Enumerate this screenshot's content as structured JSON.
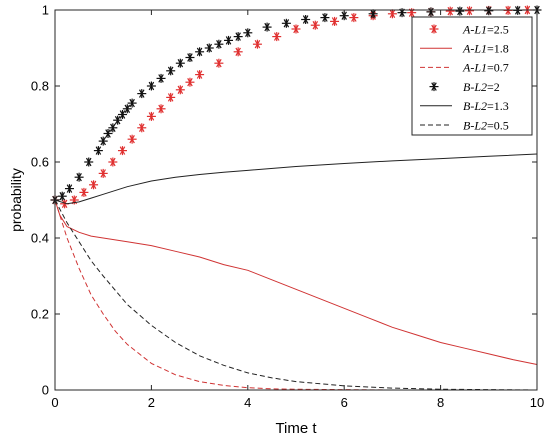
{
  "chart_data": {
    "type": "line",
    "xlabel": "Time t",
    "ylabel": "probability",
    "xlim": [
      0,
      10
    ],
    "ylim": [
      0,
      1
    ],
    "xticks": [
      "0",
      "2",
      "4",
      "6",
      "8",
      "10"
    ],
    "yticks": [
      "0",
      "0.2",
      "0.4",
      "0.6",
      "0.8",
      "1"
    ],
    "grid": false,
    "legend_position": "top-right",
    "series": [
      {
        "name": "A-L1=2.5",
        "legend_prefix": "A-L1",
        "legend_value": "=2.5",
        "style": "markers",
        "marker": "asterisk",
        "color": "#e03030",
        "x": [
          0,
          0.2,
          0.4,
          0.6,
          0.8,
          1.0,
          1.2,
          1.4,
          1.6,
          1.8,
          2.0,
          2.2,
          2.4,
          2.6,
          2.8,
          3.0,
          3.4,
          3.8,
          4.2,
          4.6,
          5.0,
          5.4,
          5.8,
          6.2,
          6.6,
          7.0,
          7.4,
          7.8,
          8.2,
          8.6,
          9.0,
          9.4,
          9.8
        ],
        "y": [
          0.5,
          0.49,
          0.5,
          0.52,
          0.54,
          0.57,
          0.6,
          0.63,
          0.66,
          0.69,
          0.72,
          0.74,
          0.77,
          0.79,
          0.81,
          0.83,
          0.86,
          0.89,
          0.91,
          0.93,
          0.95,
          0.96,
          0.97,
          0.98,
          0.985,
          0.99,
          0.993,
          0.995,
          0.997,
          0.998,
          0.999,
          0.999,
          1.0
        ]
      },
      {
        "name": "A-L1=1.8",
        "legend_prefix": "A-L1",
        "legend_value": "=1.8",
        "style": "solid",
        "color": "#d03434",
        "x": [
          0,
          0.1,
          0.25,
          0.5,
          0.75,
          1.0,
          1.5,
          2.0,
          2.5,
          3.0,
          3.5,
          4.0,
          4.5,
          5.0,
          5.5,
          6.0,
          6.5,
          7.0,
          7.5,
          8.0,
          8.5,
          9.0,
          9.5,
          10.0
        ],
        "y": [
          0.5,
          0.46,
          0.43,
          0.415,
          0.405,
          0.4,
          0.39,
          0.38,
          0.365,
          0.35,
          0.33,
          0.315,
          0.29,
          0.265,
          0.24,
          0.215,
          0.19,
          0.165,
          0.145,
          0.125,
          0.11,
          0.095,
          0.08,
          0.067
        ]
      },
      {
        "name": "A-L1=0.7",
        "legend_prefix": "A-L1",
        "legend_value": "=0.7",
        "style": "dashed",
        "color": "#d03434",
        "x": [
          0,
          0.25,
          0.5,
          0.75,
          1.0,
          1.25,
          1.5,
          1.75,
          2.0,
          2.5,
          3.0,
          3.5,
          4.0,
          4.5,
          5.0,
          6.0,
          7.0,
          8.0,
          9.0,
          10.0
        ],
        "y": [
          0.5,
          0.4,
          0.32,
          0.25,
          0.2,
          0.155,
          0.12,
          0.095,
          0.07,
          0.04,
          0.022,
          0.012,
          0.006,
          0.003,
          0.002,
          0.001,
          0.0,
          0.0,
          0.0,
          0.0
        ]
      },
      {
        "name": "B-L2=2",
        "legend_prefix": "B-L2",
        "legend_value": "=2",
        "style": "markers",
        "marker": "asterisk",
        "color": "#111111",
        "x": [
          0,
          0.15,
          0.3,
          0.5,
          0.7,
          0.9,
          1.0,
          1.1,
          1.2,
          1.3,
          1.4,
          1.5,
          1.6,
          1.8,
          2.0,
          2.2,
          2.4,
          2.6,
          2.8,
          3.0,
          3.2,
          3.4,
          3.6,
          3.8,
          4.0,
          4.4,
          4.8,
          5.2,
          5.6,
          6.0,
          6.6,
          7.2,
          7.8,
          8.4,
          9.0,
          9.6,
          10.0
        ],
        "y": [
          0.5,
          0.51,
          0.53,
          0.56,
          0.6,
          0.63,
          0.655,
          0.675,
          0.69,
          0.71,
          0.725,
          0.74,
          0.755,
          0.78,
          0.8,
          0.82,
          0.84,
          0.86,
          0.875,
          0.89,
          0.9,
          0.91,
          0.92,
          0.93,
          0.94,
          0.955,
          0.965,
          0.975,
          0.98,
          0.985,
          0.99,
          0.993,
          0.995,
          0.997,
          0.998,
          0.999,
          1.0
        ]
      },
      {
        "name": "B-L2=1.3",
        "legend_prefix": "B-L2",
        "legend_value": "=1.3",
        "style": "solid",
        "color": "#222222",
        "x": [
          0,
          0.25,
          0.5,
          0.75,
          1.0,
          1.5,
          2.0,
          2.5,
          3.0,
          3.5,
          4.0,
          5.0,
          6.0,
          7.0,
          8.0,
          9.0,
          10.0
        ],
        "y": [
          0.5,
          0.49,
          0.495,
          0.505,
          0.515,
          0.535,
          0.55,
          0.56,
          0.567,
          0.573,
          0.578,
          0.588,
          0.596,
          0.603,
          0.609,
          0.615,
          0.621
        ]
      },
      {
        "name": "B-L2=0.5",
        "legend_prefix": "B-L2",
        "legend_value": "=0.5",
        "style": "dashed",
        "color": "#222222",
        "x": [
          0,
          0.25,
          0.5,
          0.75,
          1.0,
          1.5,
          2.0,
          2.5,
          3.0,
          3.5,
          4.0,
          4.5,
          5.0,
          6.0,
          7.0,
          8.0,
          9.0,
          10.0
        ],
        "y": [
          0.5,
          0.44,
          0.39,
          0.34,
          0.3,
          0.225,
          0.17,
          0.125,
          0.09,
          0.065,
          0.045,
          0.032,
          0.022,
          0.011,
          0.005,
          0.002,
          0.001,
          0.0
        ]
      }
    ]
  }
}
